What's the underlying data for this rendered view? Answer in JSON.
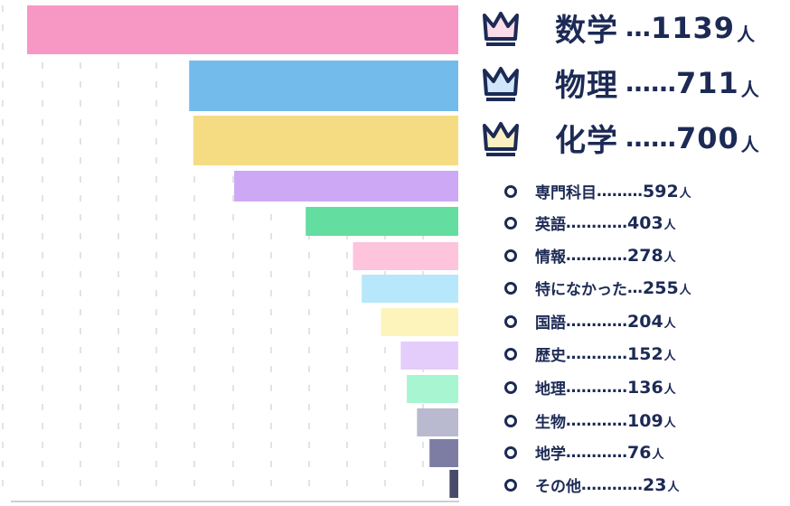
{
  "chart_data": {
    "type": "bar",
    "orientation": "horizontal",
    "unit": "人",
    "categories": [
      "数学",
      "物理",
      "化学",
      "専門科目",
      "英語",
      "情報",
      "特になかった",
      "国語",
      "歴史",
      "地理",
      "生物",
      "地学",
      "その他"
    ],
    "values": [
      1139,
      711,
      700,
      592,
      403,
      278,
      255,
      204,
      152,
      136,
      109,
      76,
      23
    ],
    "colors": [
      "#f797c3",
      "#73bbeb",
      "#f5dc83",
      "#cda8f5",
      "#63dda0",
      "#fdc4dc",
      "#b6e7fb",
      "#fdf4bc",
      "#e4cdfb",
      "#a8f5d2",
      "#b9b9cf",
      "#7d7da4",
      "#4a4a6b"
    ],
    "crown_colors": [
      "#fbdce9",
      "#cfe6fb",
      "#fbf0c2"
    ],
    "x_axis": "reversed",
    "grid": true,
    "legend": "none"
  },
  "labels": [
    {
      "name": "数学",
      "dots": "…",
      "value": "1139",
      "unit": "人"
    },
    {
      "name": "物理",
      "dots": "……",
      "value": "711",
      "unit": "人"
    },
    {
      "name": "化学",
      "dots": "……",
      "value": "700",
      "unit": "人"
    },
    {
      "name": "専門科目",
      "dots": "………",
      "value": "592",
      "unit": "人"
    },
    {
      "name": "英語",
      "dots": "…………",
      "value": "403",
      "unit": "人"
    },
    {
      "name": "情報",
      "dots": "…………",
      "value": "278",
      "unit": "人"
    },
    {
      "name": "特になかった",
      "dots": "…",
      "value": "255",
      "unit": "人"
    },
    {
      "name": "国語",
      "dots": "…………",
      "value": "204",
      "unit": "人"
    },
    {
      "name": "歴史",
      "dots": "…………",
      "value": "152",
      "unit": "人"
    },
    {
      "name": "地理",
      "dots": "…………",
      "value": "136",
      "unit": "人"
    },
    {
      "name": "生物",
      "dots": "…………",
      "value": "109",
      "unit": "人"
    },
    {
      "name": "地学",
      "dots": "…………",
      "value": "76",
      "unit": "人"
    },
    {
      "name": "その他",
      "dots": "…………",
      "value": "23",
      "unit": "人"
    }
  ]
}
